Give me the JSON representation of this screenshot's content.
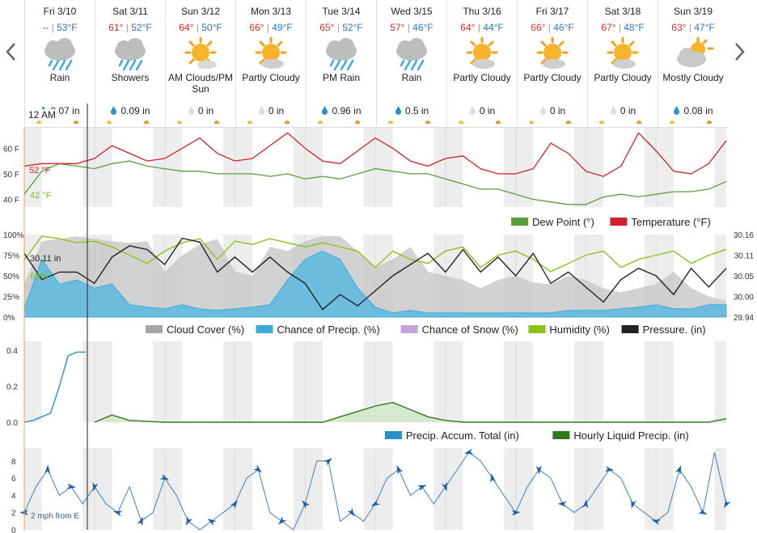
{
  "nav": {
    "prev_label": "‹",
    "next_label": "›"
  },
  "forecast": [
    {
      "date": "Fri 3/10",
      "hi": "--",
      "lo": "53°F",
      "icon": "rain-icon",
      "condition": "Rain",
      "precip": "0.07 in"
    },
    {
      "date": "Sat 3/11",
      "hi": "61°",
      "lo": "52°F",
      "icon": "rain-icon",
      "condition": "Showers",
      "precip": "0.09 in"
    },
    {
      "date": "Sun 3/12",
      "hi": "64°",
      "lo": "50°F",
      "icon": "sun-icon",
      "condition": "AM Clouds/PM Sun",
      "precip": "0 in"
    },
    {
      "date": "Mon 3/13",
      "hi": "66°",
      "lo": "49°F",
      "icon": "partly-cloudy-icon",
      "condition": "Partly Cloudy",
      "precip": "0 in"
    },
    {
      "date": "Tue 3/14",
      "hi": "65°",
      "lo": "52°F",
      "icon": "rain-icon",
      "condition": "PM Rain",
      "precip": "0.96 in"
    },
    {
      "date": "Wed 3/15",
      "hi": "57°",
      "lo": "46°F",
      "icon": "rain-icon",
      "condition": "Rain",
      "precip": "0.5 in"
    },
    {
      "date": "Thu 3/16",
      "hi": "64°",
      "lo": "44°F",
      "icon": "partly-cloudy-icon",
      "condition": "Partly Cloudy",
      "precip": "0 in"
    },
    {
      "date": "Fri 3/17",
      "hi": "66°",
      "lo": "46°F",
      "icon": "partly-cloudy-icon",
      "condition": "Partly Cloudy",
      "precip": "0 in"
    },
    {
      "date": "Sat 3/18",
      "hi": "67°",
      "lo": "48°F",
      "icon": "partly-cloudy-icon",
      "condition": "Partly Cloudy",
      "precip": "0 in"
    },
    {
      "date": "Sun 3/19",
      "hi": "63°",
      "lo": "47°F",
      "icon": "mostly-cloudy-icon",
      "condition": "Mostly Cloudy",
      "precip": "0.08 in"
    }
  ],
  "cursor": {
    "time_label": "12 AM",
    "temperature": "52 °F",
    "dew_point": "42 °F",
    "pressure": "30.11 in",
    "humidity": "69%",
    "wind": "2 mph from E"
  },
  "colors": {
    "temperature": "#d0202a",
    "dew_point": "#5a9e3c",
    "cloud": "#b5b5b5",
    "precip_chance": "#3aabd9",
    "snow": "#c9a1d9",
    "humidity": "#8cc21b",
    "pressure": "#222222",
    "accum": "#2990c8",
    "hourly": "#2f7a1f",
    "wind": "#3d7fc0"
  },
  "chart_data": [
    {
      "type": "line",
      "x": [
        0,
        6,
        12,
        18,
        24,
        30,
        36,
        42,
        48,
        54,
        60,
        66,
        72,
        78,
        84,
        90,
        96,
        102,
        108,
        114,
        120,
        126,
        132,
        138,
        144,
        150,
        156,
        162,
        168,
        174,
        180,
        186,
        192,
        198,
        204,
        210,
        216,
        222,
        228,
        234,
        240
      ],
      "series": [
        {
          "name": "Temperature (°F)",
          "values": [
            53,
            54,
            54,
            54,
            56,
            61,
            58,
            55,
            56,
            60,
            64,
            58,
            55,
            56,
            61,
            66,
            60,
            55,
            54,
            59,
            64,
            60,
            55,
            53,
            56,
            57,
            52,
            50,
            50,
            52,
            62,
            58,
            51,
            49,
            53,
            66,
            59,
            51,
            50,
            54,
            63
          ]
        },
        {
          "name": "Dew Point (°)",
          "values": [
            42,
            51,
            54,
            53,
            52,
            54,
            55,
            53,
            52,
            51,
            51,
            50,
            50,
            50,
            49,
            50,
            48,
            49,
            48,
            50,
            52,
            51,
            50,
            50,
            48,
            46,
            44,
            44,
            42,
            40,
            39,
            38,
            38,
            41,
            42,
            41,
            42,
            43,
            43,
            44,
            47
          ]
        }
      ],
      "ylim": [
        37,
        68
      ],
      "yticks": [
        "60 F",
        "50 F",
        "40 F"
      ],
      "legend": "bottom-right"
    },
    {
      "type": "line",
      "x": [
        0,
        6,
        12,
        18,
        24,
        30,
        36,
        42,
        48,
        54,
        60,
        66,
        72,
        78,
        84,
        90,
        96,
        102,
        108,
        114,
        120,
        126,
        132,
        138,
        144,
        150,
        156,
        162,
        168,
        174,
        180,
        186,
        192,
        198,
        204,
        210,
        216,
        222,
        228,
        234,
        240
      ],
      "series": [
        {
          "name": "Cloud Cover (%)",
          "values": [
            40,
            92,
            95,
            98,
            95,
            92,
            90,
            92,
            55,
            75,
            88,
            95,
            55,
            50,
            85,
            80,
            92,
            98,
            98,
            80,
            60,
            70,
            85,
            55,
            50,
            45,
            35,
            45,
            50,
            42,
            40,
            50,
            45,
            35,
            30,
            35,
            40,
            55,
            35,
            25,
            20
          ]
        },
        {
          "name": "Chance of Precip. (%)",
          "values": [
            10,
            70,
            40,
            45,
            35,
            40,
            15,
            12,
            10,
            15,
            10,
            8,
            10,
            12,
            15,
            45,
            70,
            80,
            70,
            35,
            12,
            5,
            8,
            5,
            5,
            5,
            5,
            5,
            5,
            5,
            5,
            8,
            8,
            8,
            10,
            12,
            15,
            10,
            10,
            15,
            15
          ]
        },
        {
          "name": "Chance of Snow (%)",
          "values": [
            0,
            0,
            0,
            0,
            0,
            0,
            0,
            0,
            0,
            0,
            0,
            0,
            0,
            0,
            0,
            0,
            0,
            0,
            0,
            0,
            0,
            0,
            0,
            0,
            0,
            0,
            0,
            0,
            0,
            0,
            0,
            0,
            0,
            0,
            0,
            0,
            0,
            0,
            0,
            0,
            0
          ]
        },
        {
          "name": "Humidity (%)",
          "values": [
            69,
            98,
            95,
            90,
            92,
            85,
            75,
            65,
            80,
            90,
            95,
            70,
            92,
            88,
            95,
            90,
            85,
            90,
            85,
            80,
            60,
            80,
            70,
            65,
            80,
            85,
            60,
            75,
            80,
            70,
            55,
            65,
            75,
            80,
            60,
            70,
            75,
            80,
            65,
            75,
            82
          ]
        },
        {
          "name": "Pressure. (in)",
          "values": [
            30.11,
            30.04,
            30.06,
            30.06,
            30.03,
            30.1,
            30.13,
            30.12,
            30.08,
            30.15,
            30.14,
            30.06,
            30.1,
            30.06,
            30.1,
            30.06,
            30.03,
            29.96,
            30,
            29.97,
            30.01,
            30.05,
            30.08,
            30.11,
            30.06,
            30.12,
            30.06,
            30.1,
            30.05,
            30.11,
            30.03,
            30.06,
            30.02,
            29.98,
            30.04,
            30.07,
            30.05,
            30.0,
            30.07,
            30.02,
            30.07
          ]
        }
      ],
      "ylim": [
        0,
        100
      ],
      "yticks": [
        "100%",
        "75%",
        "50%",
        "25%",
        "0%"
      ],
      "y2ticks": [
        "30.16",
        "30.11",
        "30.05",
        "30.00",
        "29.94"
      ],
      "y2lim": [
        29.94,
        30.16
      ],
      "legend": "bottom-right"
    },
    {
      "type": "line",
      "x": [
        0,
        3,
        6,
        9,
        12,
        15,
        18,
        21,
        24,
        30,
        36,
        42,
        48,
        54,
        60,
        66,
        72,
        78,
        84,
        90,
        96,
        102,
        108,
        114,
        120,
        126,
        132,
        138,
        144,
        150,
        156,
        162,
        168,
        174,
        180,
        186,
        192,
        198,
        204,
        210,
        216,
        222,
        228,
        234,
        240
      ],
      "series": [
        {
          "name": "Precip. Accum. Total (in)",
          "values": [
            0,
            0.01,
            0.03,
            0.05,
            0.2,
            0.37,
            0.39,
            0.39,
            null,
            null,
            null,
            null,
            null,
            null,
            null,
            null,
            null,
            null,
            null,
            null,
            null,
            null,
            null,
            null,
            null,
            null,
            null,
            null,
            null,
            null,
            null,
            null,
            null,
            null,
            null,
            null,
            null,
            null,
            null,
            null,
            null,
            null,
            null,
            null,
            null
          ]
        },
        {
          "name": "Hourly Liquid Precip. (in)",
          "values": [
            null,
            null,
            null,
            null,
            null,
            null,
            null,
            null,
            0,
            0.04,
            0.01,
            0.005,
            0,
            0,
            0,
            0,
            0,
            0,
            0,
            0,
            0,
            0,
            0.03,
            0.06,
            0.09,
            0.11,
            0.07,
            0.03,
            0.01,
            0,
            0,
            0,
            0,
            0,
            0,
            0,
            0,
            0,
            0,
            0,
            0,
            0,
            0,
            0,
            0.02
          ]
        }
      ],
      "ylim": [
        0,
        0.45
      ],
      "yticks": [
        "0.4",
        "0.2",
        "0.0"
      ],
      "legend": "bottom-right"
    },
    {
      "type": "line",
      "x": [
        0,
        4,
        8,
        12,
        16,
        20,
        24,
        28,
        32,
        36,
        40,
        44,
        48,
        52,
        56,
        60,
        64,
        68,
        72,
        76,
        80,
        84,
        88,
        92,
        96,
        100,
        104,
        108,
        112,
        116,
        120,
        124,
        128,
        132,
        136,
        140,
        144,
        148,
        152,
        156,
        160,
        164,
        168,
        172,
        176,
        180,
        184,
        188,
        192,
        196,
        200,
        204,
        208,
        212,
        216,
        220,
        224,
        228,
        232,
        236,
        240
      ],
      "series": [
        {
          "name": "Wind (mph)",
          "values": [
            2,
            5,
            7,
            4,
            5,
            3,
            5,
            3,
            2,
            5,
            1,
            2,
            6,
            4,
            1,
            0,
            1,
            2,
            3,
            6,
            7,
            2,
            1,
            0,
            3,
            8,
            8,
            1,
            2,
            1,
            3,
            6,
            7,
            4,
            5,
            3,
            5,
            7,
            9,
            8,
            6,
            4,
            2,
            5,
            7,
            6,
            3,
            2,
            3,
            5,
            7,
            6,
            3,
            2,
            1,
            2,
            7,
            5,
            2,
            9,
            3
          ]
        }
      ],
      "ylim": [
        0,
        9.5
      ],
      "yticks": [
        "8",
        "6",
        "4",
        "2",
        "0"
      ]
    }
  ],
  "legends": {
    "temp": [
      {
        "label": "Dew Point (°)",
        "color": "#5a9e3c"
      },
      {
        "label": "Temperature (°F)",
        "color": "#d0202a"
      }
    ],
    "humidity": [
      {
        "label": "Cloud Cover (%)",
        "color": "#a6a6a6"
      },
      {
        "label": "Chance of Precip. (%)",
        "color": "#3aabd9"
      },
      {
        "label": "Chance of Snow (%)",
        "color": "#c9a1d9"
      },
      {
        "label": "Humidity (%)",
        "color": "#8cc21b"
      },
      {
        "label": "Pressure. (in)",
        "color": "#222222"
      }
    ],
    "precip": [
      {
        "label": "Precip. Accum. Total (in)",
        "color": "#2990c8"
      },
      {
        "label": "Hourly Liquid Precip. (in)",
        "color": "#2f7a1f"
      }
    ]
  }
}
